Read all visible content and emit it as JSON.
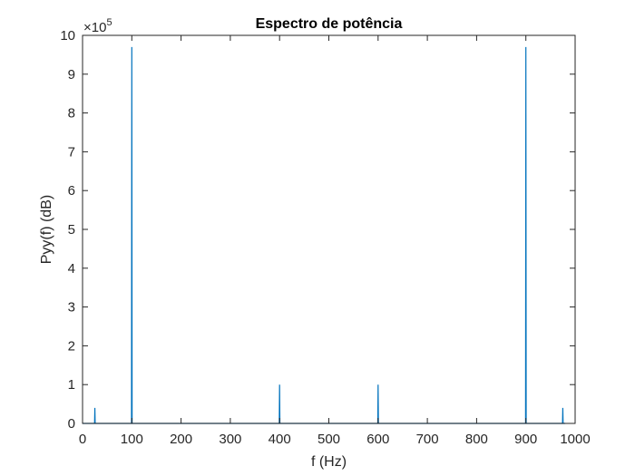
{
  "chart_data": {
    "type": "line",
    "title": "Espectro de potência",
    "xlabel": "f (Hz)",
    "ylabel": "Pyy(f) (dB)",
    "xlim": [
      0,
      1000
    ],
    "ylim": [
      0,
      10
    ],
    "y_multiplier": {
      "base": "×10",
      "exponent": "5"
    },
    "xticks": [
      0,
      100,
      200,
      300,
      400,
      500,
      600,
      700,
      800,
      900,
      1000
    ],
    "yticks": [
      0,
      1,
      2,
      3,
      4,
      5,
      6,
      7,
      8,
      9,
      10
    ],
    "grid": false,
    "series_color": "#0072BD",
    "series": [
      {
        "peaks": [
          {
            "f": 25,
            "value": 0.4
          },
          {
            "f": 100,
            "value": 9.7
          },
          {
            "f": 400,
            "value": 1.0
          },
          {
            "f": 600,
            "value": 1.0
          },
          {
            "f": 900,
            "value": 9.7
          },
          {
            "f": 975,
            "value": 0.4
          }
        ]
      }
    ]
  }
}
